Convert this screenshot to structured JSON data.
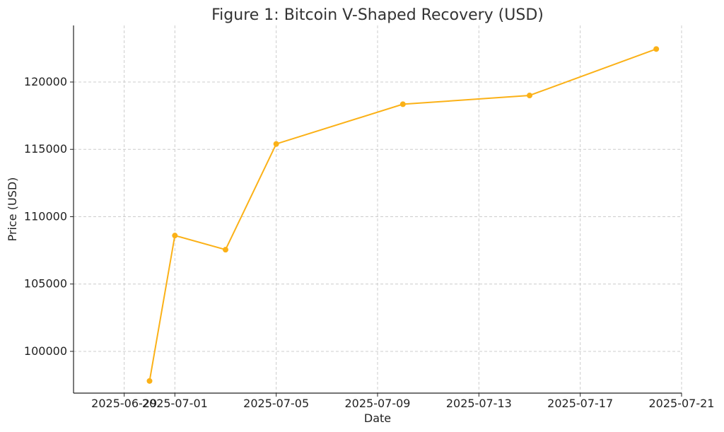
{
  "chart_data": {
    "type": "line",
    "title": "Figure 1: Bitcoin V-Shaped Recovery (USD)",
    "xlabel": "Date",
    "ylabel": "Price (USD)",
    "x_ticks": [
      "2025-06-29",
      "2025-07-01",
      "2025-07-05",
      "2025-07-09",
      "2025-07-13",
      "2025-07-17",
      "2025-07-21"
    ],
    "y_ticks": [
      100000,
      105000,
      110000,
      115000,
      120000
    ],
    "xlim": [
      "2025-06-27",
      "2025-07-21"
    ],
    "ylim": [
      96900,
      124200
    ],
    "grid": true,
    "series": [
      {
        "color": "#FBB117",
        "points": [
          {
            "x": "2025-06-30",
            "y": 97800
          },
          {
            "x": "2025-07-01",
            "y": 108600
          },
          {
            "x": "2025-07-03",
            "y": 107550
          },
          {
            "x": "2025-07-05",
            "y": 115400
          },
          {
            "x": "2025-07-10",
            "y": 118350
          },
          {
            "x": "2025-07-15",
            "y": 119000
          },
          {
            "x": "2025-07-20",
            "y": 122450
          }
        ]
      }
    ]
  }
}
